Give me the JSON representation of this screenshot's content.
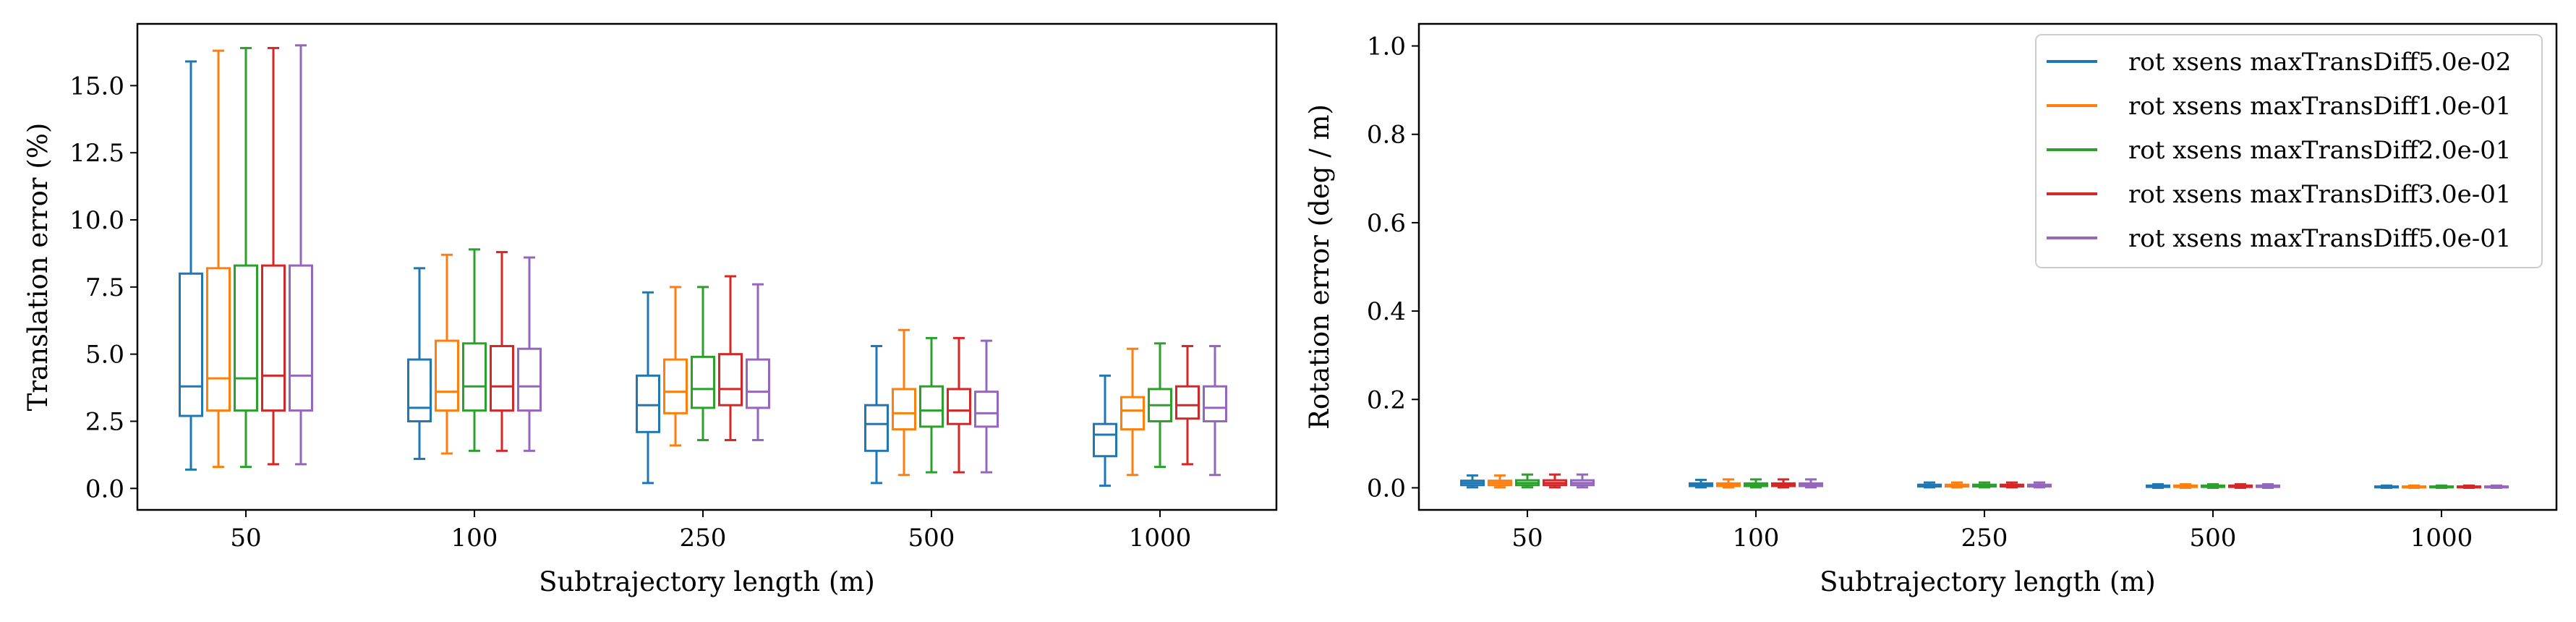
{
  "chart_data": [
    {
      "type": "box",
      "categories": [
        "50",
        "100",
        "250",
        "500",
        "1000"
      ],
      "xlabel": "Subtrajectory length (m)",
      "ylabel": "Translation error (%)",
      "ylim": [
        -0.8,
        17.3
      ],
      "yticks": [
        "0.0",
        "2.5",
        "5.0",
        "7.5",
        "10.0",
        "12.5",
        "15.0"
      ],
      "series": [
        {
          "color": "#1f77b4",
          "boxes": [
            {
              "min": 0.7,
              "q1": 2.7,
              "median": 3.8,
              "q3": 8.0,
              "max": 15.9
            },
            {
              "min": 1.1,
              "q1": 2.5,
              "median": 3.0,
              "q3": 4.8,
              "max": 8.2
            },
            {
              "min": 0.2,
              "q1": 2.1,
              "median": 3.1,
              "q3": 4.2,
              "max": 7.3
            },
            {
              "min": 0.2,
              "q1": 1.4,
              "median": 2.4,
              "q3": 3.1,
              "max": 5.3
            },
            {
              "min": 0.1,
              "q1": 1.2,
              "median": 2.0,
              "q3": 2.4,
              "max": 4.2
            }
          ]
        },
        {
          "color": "#ff7f0e",
          "boxes": [
            {
              "min": 0.8,
              "q1": 2.9,
              "median": 4.1,
              "q3": 8.2,
              "max": 16.3
            },
            {
              "min": 1.3,
              "q1": 2.9,
              "median": 3.6,
              "q3": 5.5,
              "max": 8.7
            },
            {
              "min": 1.6,
              "q1": 2.8,
              "median": 3.6,
              "q3": 4.8,
              "max": 7.5
            },
            {
              "min": 0.5,
              "q1": 2.2,
              "median": 2.8,
              "q3": 3.7,
              "max": 5.9
            },
            {
              "min": 0.5,
              "q1": 2.2,
              "median": 2.9,
              "q3": 3.4,
              "max": 5.2
            }
          ]
        },
        {
          "color": "#2ca02c",
          "boxes": [
            {
              "min": 0.8,
              "q1": 2.9,
              "median": 4.1,
              "q3": 8.3,
              "max": 16.4
            },
            {
              "min": 1.4,
              "q1": 2.9,
              "median": 3.8,
              "q3": 5.4,
              "max": 8.9
            },
            {
              "min": 1.8,
              "q1": 3.0,
              "median": 3.7,
              "q3": 4.9,
              "max": 7.5
            },
            {
              "min": 0.6,
              "q1": 2.3,
              "median": 2.9,
              "q3": 3.8,
              "max": 5.6
            },
            {
              "min": 0.8,
              "q1": 2.5,
              "median": 3.1,
              "q3": 3.7,
              "max": 5.4
            }
          ]
        },
        {
          "color": "#d62728",
          "boxes": [
            {
              "min": 0.9,
              "q1": 2.9,
              "median": 4.2,
              "q3": 8.3,
              "max": 16.4
            },
            {
              "min": 1.4,
              "q1": 2.9,
              "median": 3.8,
              "q3": 5.3,
              "max": 8.8
            },
            {
              "min": 1.8,
              "q1": 3.1,
              "median": 3.7,
              "q3": 5.0,
              "max": 7.9
            },
            {
              "min": 0.6,
              "q1": 2.4,
              "median": 2.9,
              "q3": 3.7,
              "max": 5.6
            },
            {
              "min": 0.9,
              "q1": 2.6,
              "median": 3.1,
              "q3": 3.8,
              "max": 5.3
            }
          ]
        },
        {
          "color": "#9467bd",
          "boxes": [
            {
              "min": 0.9,
              "q1": 2.9,
              "median": 4.2,
              "q3": 8.3,
              "max": 16.5
            },
            {
              "min": 1.4,
              "q1": 2.9,
              "median": 3.8,
              "q3": 5.2,
              "max": 8.6
            },
            {
              "min": 1.8,
              "q1": 3.0,
              "median": 3.6,
              "q3": 4.8,
              "max": 7.6
            },
            {
              "min": 0.6,
              "q1": 2.3,
              "median": 2.8,
              "q3": 3.6,
              "max": 5.5
            },
            {
              "min": 0.5,
              "q1": 2.5,
              "median": 3.0,
              "q3": 3.8,
              "max": 5.3
            }
          ]
        }
      ]
    },
    {
      "type": "box",
      "categories": [
        "50",
        "100",
        "250",
        "500",
        "1000"
      ],
      "xlabel": "Subtrajectory length (m)",
      "ylabel": "Rotation error (deg / m)",
      "ylim": [
        -0.05,
        1.05
      ],
      "yticks": [
        "0.0",
        "0.2",
        "0.4",
        "0.6",
        "0.8",
        "1.0"
      ],
      "legend": "top-right",
      "series": [
        {
          "name": "rot xsens maxTransDiff5.0e-02",
          "color": "#1f77b4",
          "boxes": [
            {
              "min": 0.001,
              "q1": 0.006,
              "median": 0.011,
              "q3": 0.016,
              "max": 0.028
            },
            {
              "min": 0.001,
              "q1": 0.004,
              "median": 0.007,
              "q3": 0.01,
              "max": 0.018
            },
            {
              "min": 0.001,
              "q1": 0.003,
              "median": 0.005,
              "q3": 0.007,
              "max": 0.012
            },
            {
              "min": 0.0,
              "q1": 0.002,
              "median": 0.003,
              "q3": 0.005,
              "max": 0.008
            },
            {
              "min": 0.0,
              "q1": 0.001,
              "median": 0.002,
              "q3": 0.003,
              "max": 0.005
            }
          ]
        },
        {
          "name": "rot xsens maxTransDiff1.0e-01",
          "color": "#ff7f0e",
          "boxes": [
            {
              "min": 0.001,
              "q1": 0.006,
              "median": 0.011,
              "q3": 0.016,
              "max": 0.028
            },
            {
              "min": 0.001,
              "q1": 0.004,
              "median": 0.007,
              "q3": 0.01,
              "max": 0.019
            },
            {
              "min": 0.001,
              "q1": 0.003,
              "median": 0.005,
              "q3": 0.007,
              "max": 0.012
            },
            {
              "min": 0.0,
              "q1": 0.002,
              "median": 0.003,
              "q3": 0.005,
              "max": 0.008
            },
            {
              "min": 0.0,
              "q1": 0.001,
              "median": 0.002,
              "q3": 0.003,
              "max": 0.005
            }
          ]
        },
        {
          "name": "rot xsens maxTransDiff2.0e-01",
          "color": "#2ca02c",
          "boxes": [
            {
              "min": 0.001,
              "q1": 0.006,
              "median": 0.011,
              "q3": 0.017,
              "max": 0.03
            },
            {
              "min": 0.001,
              "q1": 0.004,
              "median": 0.007,
              "q3": 0.01,
              "max": 0.019
            },
            {
              "min": 0.001,
              "q1": 0.003,
              "median": 0.005,
              "q3": 0.007,
              "max": 0.012
            },
            {
              "min": 0.0,
              "q1": 0.002,
              "median": 0.003,
              "q3": 0.005,
              "max": 0.008
            },
            {
              "min": 0.0,
              "q1": 0.001,
              "median": 0.002,
              "q3": 0.003,
              "max": 0.005
            }
          ]
        },
        {
          "name": "rot xsens maxTransDiff3.0e-01",
          "color": "#d62728",
          "boxes": [
            {
              "min": 0.001,
              "q1": 0.006,
              "median": 0.011,
              "q3": 0.017,
              "max": 0.03
            },
            {
              "min": 0.001,
              "q1": 0.004,
              "median": 0.007,
              "q3": 0.01,
              "max": 0.019
            },
            {
              "min": 0.001,
              "q1": 0.003,
              "median": 0.005,
              "q3": 0.007,
              "max": 0.012
            },
            {
              "min": 0.0,
              "q1": 0.002,
              "median": 0.003,
              "q3": 0.005,
              "max": 0.008
            },
            {
              "min": 0.0,
              "q1": 0.001,
              "median": 0.002,
              "q3": 0.003,
              "max": 0.005
            }
          ]
        },
        {
          "name": "rot xsens maxTransDiff5.0e-01",
          "color": "#9467bd",
          "boxes": [
            {
              "min": 0.001,
              "q1": 0.006,
              "median": 0.011,
              "q3": 0.017,
              "max": 0.03
            },
            {
              "min": 0.001,
              "q1": 0.004,
              "median": 0.007,
              "q3": 0.01,
              "max": 0.019
            },
            {
              "min": 0.001,
              "q1": 0.003,
              "median": 0.005,
              "q3": 0.007,
              "max": 0.012
            },
            {
              "min": 0.0,
              "q1": 0.002,
              "median": 0.003,
              "q3": 0.005,
              "max": 0.008
            },
            {
              "min": 0.0,
              "q1": 0.001,
              "median": 0.002,
              "q3": 0.003,
              "max": 0.005
            }
          ]
        }
      ]
    }
  ]
}
